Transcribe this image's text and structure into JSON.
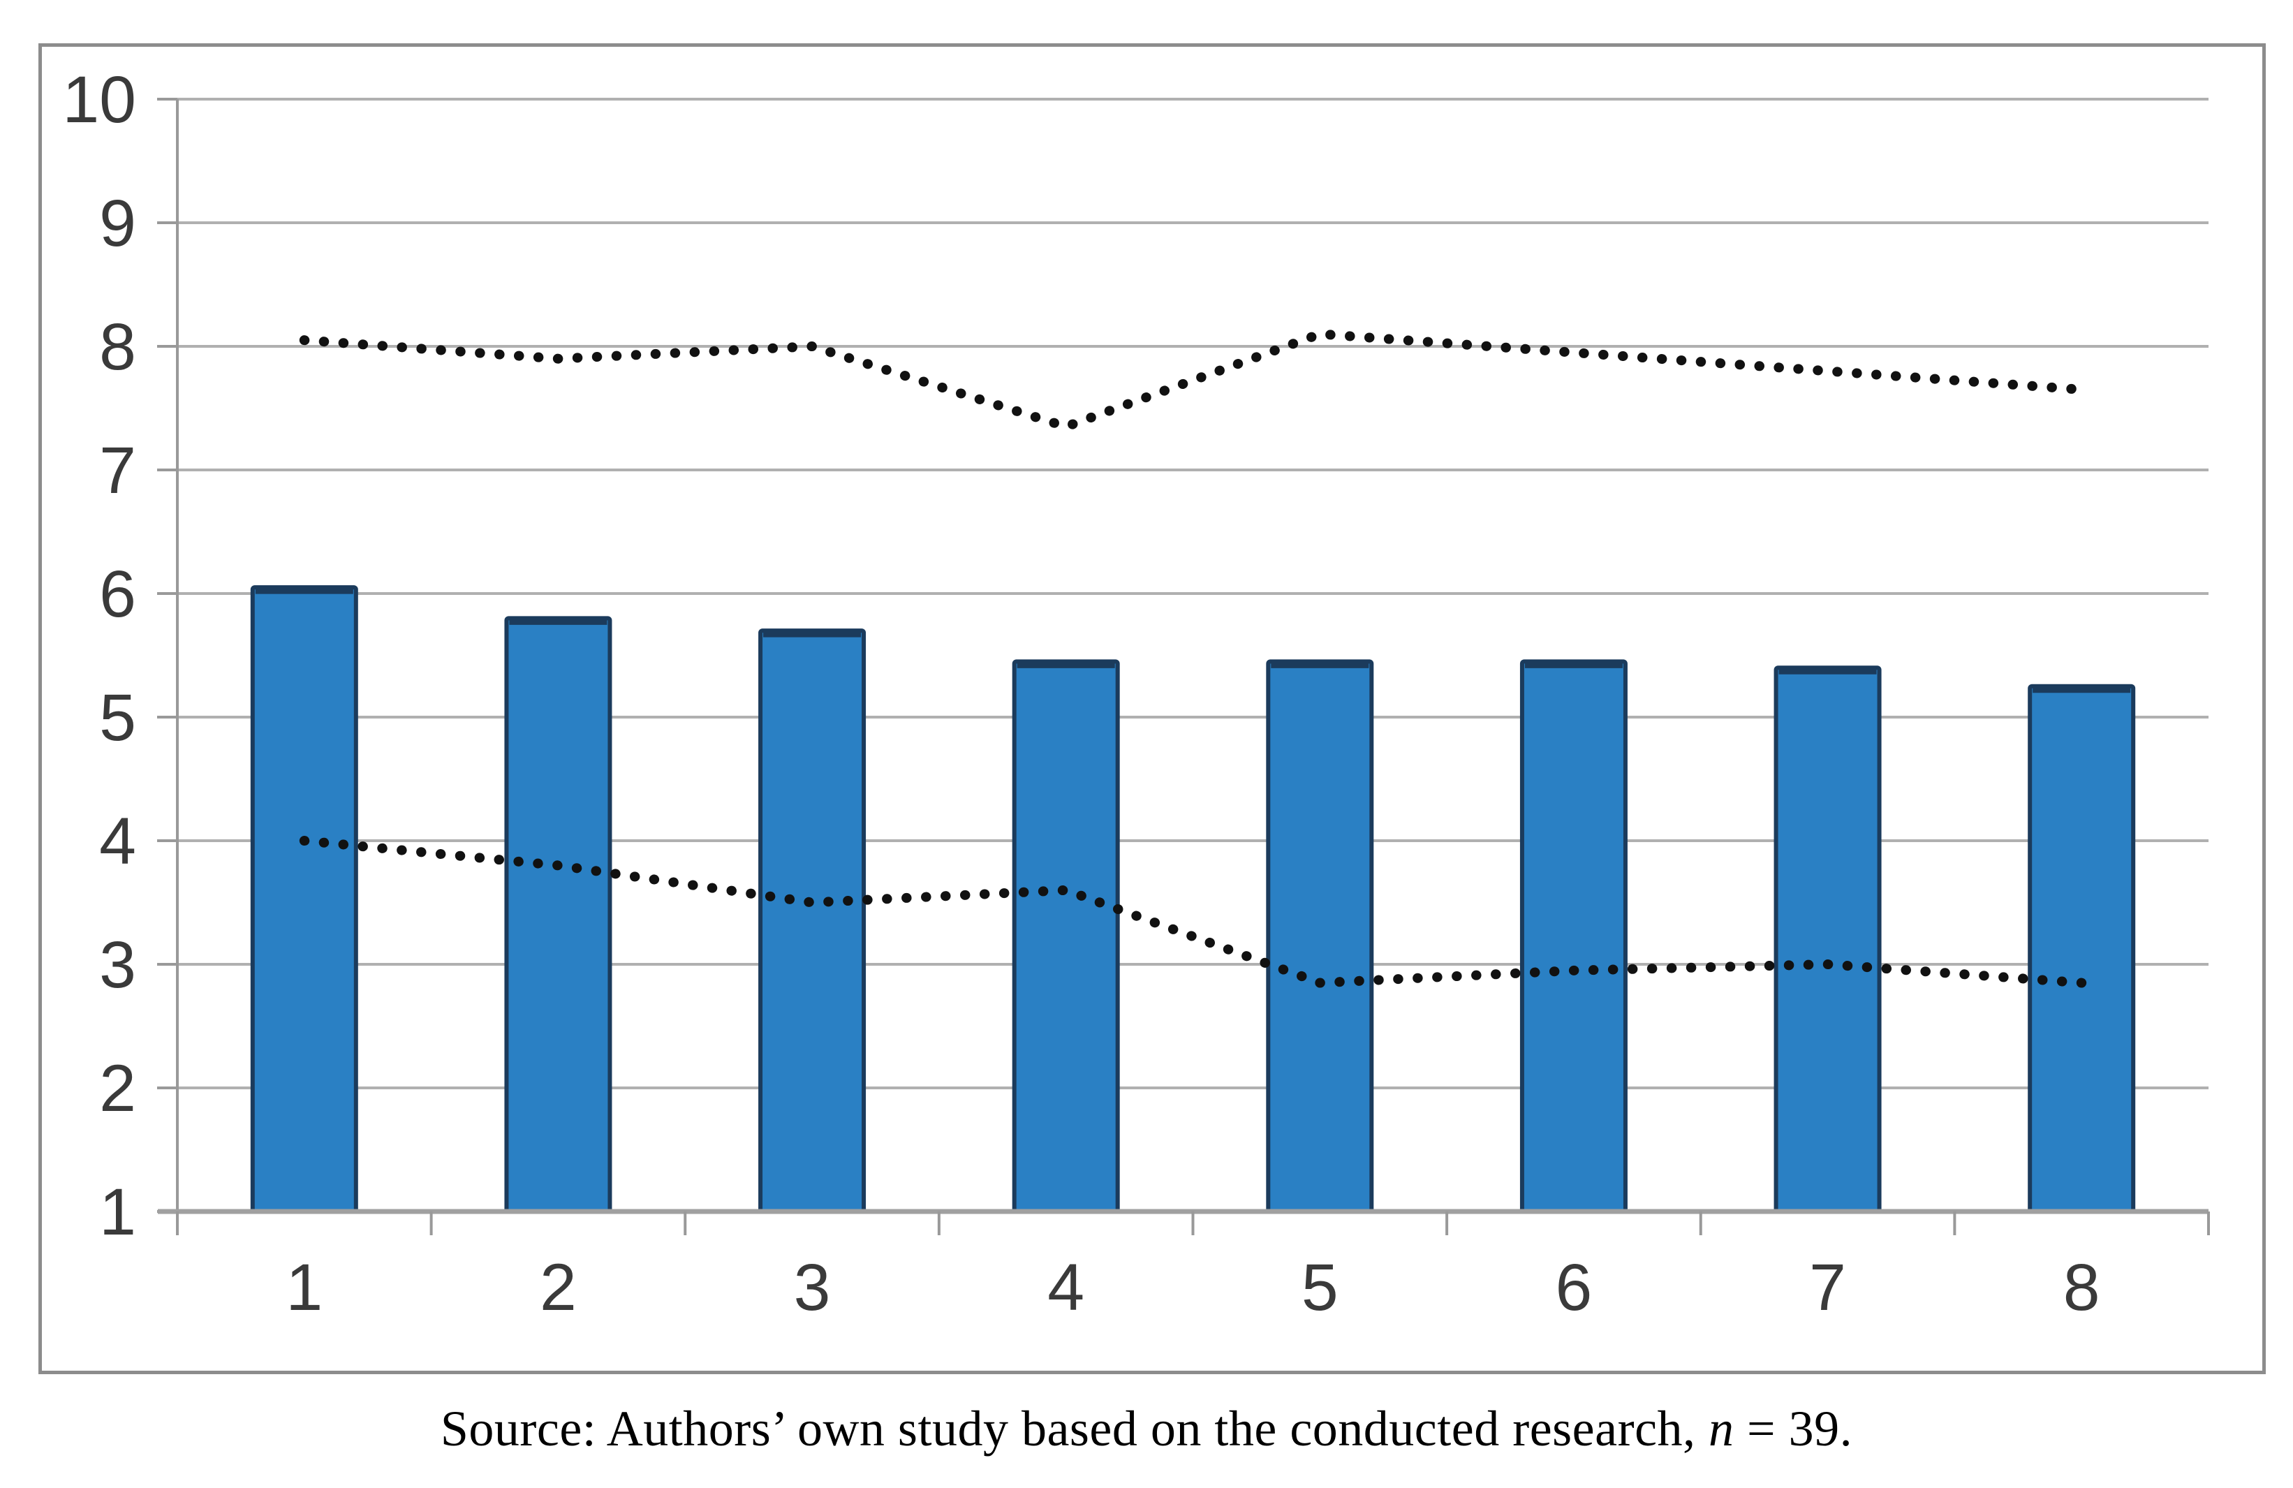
{
  "figure": {
    "caption": {
      "prefix": "Source: Authors’ own study based on the conducted research, ",
      "italic_var": "n",
      "suffix": " = 39."
    }
  },
  "chart_data": {
    "type": "combo-bar-line",
    "title": "",
    "xlabel": "",
    "ylabel": "",
    "categories": [
      "1",
      "2",
      "3",
      "4",
      "5",
      "6",
      "7",
      "8"
    ],
    "bar_series": {
      "name": "blue-bars",
      "values": [
        6.05,
        5.8,
        5.7,
        5.45,
        5.45,
        5.45,
        5.4,
        5.25
      ]
    },
    "line_series": [
      {
        "name": "upper-dotted-line",
        "values": [
          8.05,
          7.9,
          8.0,
          7.35,
          8.1,
          7.95,
          7.8,
          7.65
        ]
      },
      {
        "name": "lower-dotted-line",
        "values": [
          4.0,
          3.8,
          3.5,
          3.6,
          2.85,
          2.95,
          3.0,
          2.85
        ]
      }
    ],
    "y_ticks": [
      1,
      2,
      3,
      4,
      5,
      6,
      7,
      8,
      9,
      10
    ],
    "ylim": [
      1,
      10
    ],
    "bars_base_value": 1,
    "grid": true,
    "legend_position": "none",
    "styles": {
      "bar_fill": "#2a80c4",
      "bar_stroke": "#1b3b5c",
      "dot_line_color": "#111111",
      "gridline_color": "#b0b0b0",
      "baseline_color": "#a0a0a0",
      "axis_color": "#999999",
      "label_color": "#3a3a3a",
      "frame_border_color": "#8c8c8c"
    }
  }
}
